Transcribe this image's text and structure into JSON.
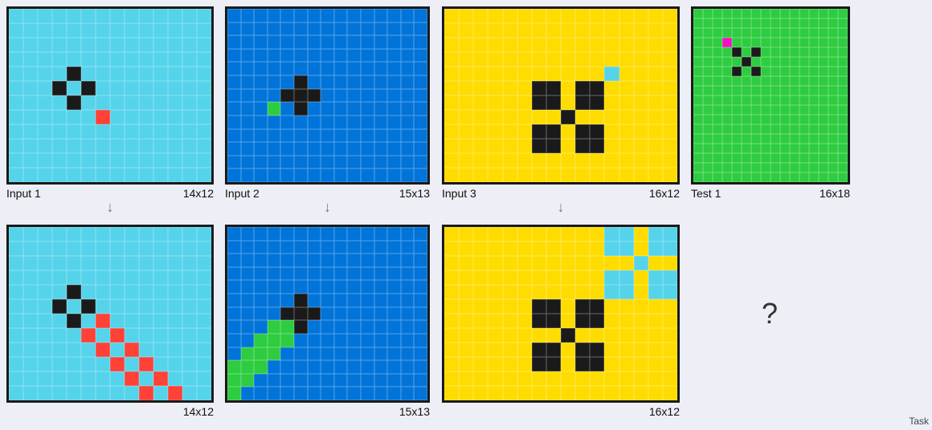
{
  "palette": {
    "0": "#1a1a1a",
    "1": "#0074d9",
    "2": "#2ecc40",
    "3": "#ff4136",
    "4": "#ffdc00",
    "5": "#f012be",
    "6": "#55d3ea"
  },
  "examples": [
    {
      "input": {
        "label": "Input 1",
        "size": "14x12",
        "w": 14,
        "h": 12,
        "bg": "6",
        "cells": [
          [
            4,
            4,
            "0"
          ],
          [
            3,
            5,
            "0"
          ],
          [
            5,
            5,
            "0"
          ],
          [
            4,
            6,
            "0"
          ],
          [
            6,
            7,
            "3"
          ]
        ]
      },
      "output": {
        "label": "",
        "size": "14x12",
        "w": 14,
        "h": 12,
        "bg": "6",
        "cells": [
          [
            4,
            4,
            "0"
          ],
          [
            3,
            5,
            "0"
          ],
          [
            5,
            5,
            "0"
          ],
          [
            4,
            6,
            "0"
          ],
          [
            6,
            6,
            "3"
          ],
          [
            5,
            7,
            "3"
          ],
          [
            7,
            7,
            "3"
          ],
          [
            6,
            8,
            "3"
          ],
          [
            8,
            8,
            "3"
          ],
          [
            7,
            9,
            "3"
          ],
          [
            9,
            9,
            "3"
          ],
          [
            8,
            10,
            "3"
          ],
          [
            10,
            10,
            "3"
          ],
          [
            9,
            11,
            "3"
          ],
          [
            11,
            11,
            "3"
          ],
          [
            10,
            12,
            "3"
          ],
          [
            12,
            12,
            "3"
          ],
          [
            11,
            13,
            "3"
          ]
        ]
      }
    },
    {
      "input": {
        "label": "Input 2",
        "size": "15x13",
        "w": 15,
        "h": 13,
        "bg": "1",
        "cells": [
          [
            5,
            5,
            "0"
          ],
          [
            4,
            6,
            "0"
          ],
          [
            5,
            6,
            "0"
          ],
          [
            6,
            6,
            "0"
          ],
          [
            5,
            7,
            "0"
          ],
          [
            3,
            7,
            "2"
          ]
        ]
      },
      "output": {
        "label": "",
        "size": "15x13",
        "w": 15,
        "h": 13,
        "bg": "1",
        "cells": [
          [
            5,
            5,
            "0"
          ],
          [
            4,
            6,
            "0"
          ],
          [
            5,
            6,
            "0"
          ],
          [
            6,
            6,
            "0"
          ],
          [
            5,
            7,
            "0"
          ],
          [
            3,
            7,
            "2"
          ],
          [
            4,
            7,
            "2"
          ],
          [
            2,
            8,
            "2"
          ],
          [
            3,
            8,
            "2"
          ],
          [
            4,
            8,
            "2"
          ],
          [
            1,
            9,
            "2"
          ],
          [
            2,
            9,
            "2"
          ],
          [
            3,
            9,
            "2"
          ],
          [
            0,
            10,
            "2"
          ],
          [
            1,
            10,
            "2"
          ],
          [
            2,
            10,
            "2"
          ],
          [
            0,
            11,
            "2"
          ],
          [
            1,
            11,
            "2"
          ],
          [
            0,
            12,
            "2"
          ]
        ]
      }
    },
    {
      "input": {
        "label": "Input 3",
        "size": "16x12",
        "w": 16,
        "h": 12,
        "bg": "4",
        "cells": [
          [
            6,
            5,
            "0"
          ],
          [
            7,
            5,
            "0"
          ],
          [
            9,
            5,
            "0"
          ],
          [
            10,
            5,
            "0"
          ],
          [
            6,
            6,
            "0"
          ],
          [
            7,
            6,
            "0"
          ],
          [
            9,
            6,
            "0"
          ],
          [
            10,
            6,
            "0"
          ],
          [
            8,
            7,
            "0"
          ],
          [
            6,
            8,
            "0"
          ],
          [
            7,
            8,
            "0"
          ],
          [
            9,
            8,
            "0"
          ],
          [
            10,
            8,
            "0"
          ],
          [
            6,
            9,
            "0"
          ],
          [
            7,
            9,
            "0"
          ],
          [
            9,
            9,
            "0"
          ],
          [
            10,
            9,
            "0"
          ],
          [
            11,
            4,
            "6"
          ]
        ]
      },
      "output": {
        "label": "",
        "size": "16x12",
        "w": 16,
        "h": 12,
        "bg": "4",
        "cells": [
          [
            6,
            5,
            "0"
          ],
          [
            7,
            5,
            "0"
          ],
          [
            9,
            5,
            "0"
          ],
          [
            10,
            5,
            "0"
          ],
          [
            6,
            6,
            "0"
          ],
          [
            7,
            6,
            "0"
          ],
          [
            9,
            6,
            "0"
          ],
          [
            10,
            6,
            "0"
          ],
          [
            8,
            7,
            "0"
          ],
          [
            6,
            8,
            "0"
          ],
          [
            7,
            8,
            "0"
          ],
          [
            9,
            8,
            "0"
          ],
          [
            10,
            8,
            "0"
          ],
          [
            6,
            9,
            "0"
          ],
          [
            7,
            9,
            "0"
          ],
          [
            9,
            9,
            "0"
          ],
          [
            10,
            9,
            "0"
          ],
          [
            11,
            0,
            "6"
          ],
          [
            12,
            0,
            "6"
          ],
          [
            14,
            0,
            "6"
          ],
          [
            15,
            0,
            "6"
          ],
          [
            11,
            1,
            "6"
          ],
          [
            12,
            1,
            "6"
          ],
          [
            14,
            1,
            "6"
          ],
          [
            15,
            1,
            "6"
          ],
          [
            13,
            2,
            "6"
          ],
          [
            11,
            3,
            "6"
          ],
          [
            12,
            3,
            "6"
          ],
          [
            14,
            3,
            "6"
          ],
          [
            15,
            3,
            "6"
          ],
          [
            11,
            4,
            "6"
          ],
          [
            12,
            4,
            "6"
          ],
          [
            14,
            4,
            "6"
          ],
          [
            15,
            4,
            "6"
          ]
        ]
      }
    }
  ],
  "test": {
    "label": "Test 1",
    "size": "16x18",
    "w": 16,
    "h": 18,
    "bg": "2",
    "cells": [
      [
        3,
        3,
        "5"
      ],
      [
        4,
        4,
        "0"
      ],
      [
        6,
        4,
        "0"
      ],
      [
        5,
        5,
        "0"
      ],
      [
        4,
        6,
        "0"
      ],
      [
        6,
        6,
        "0"
      ]
    ]
  },
  "question_mark": "?",
  "arrow_glyph": "↓",
  "footer_label": "Task"
}
